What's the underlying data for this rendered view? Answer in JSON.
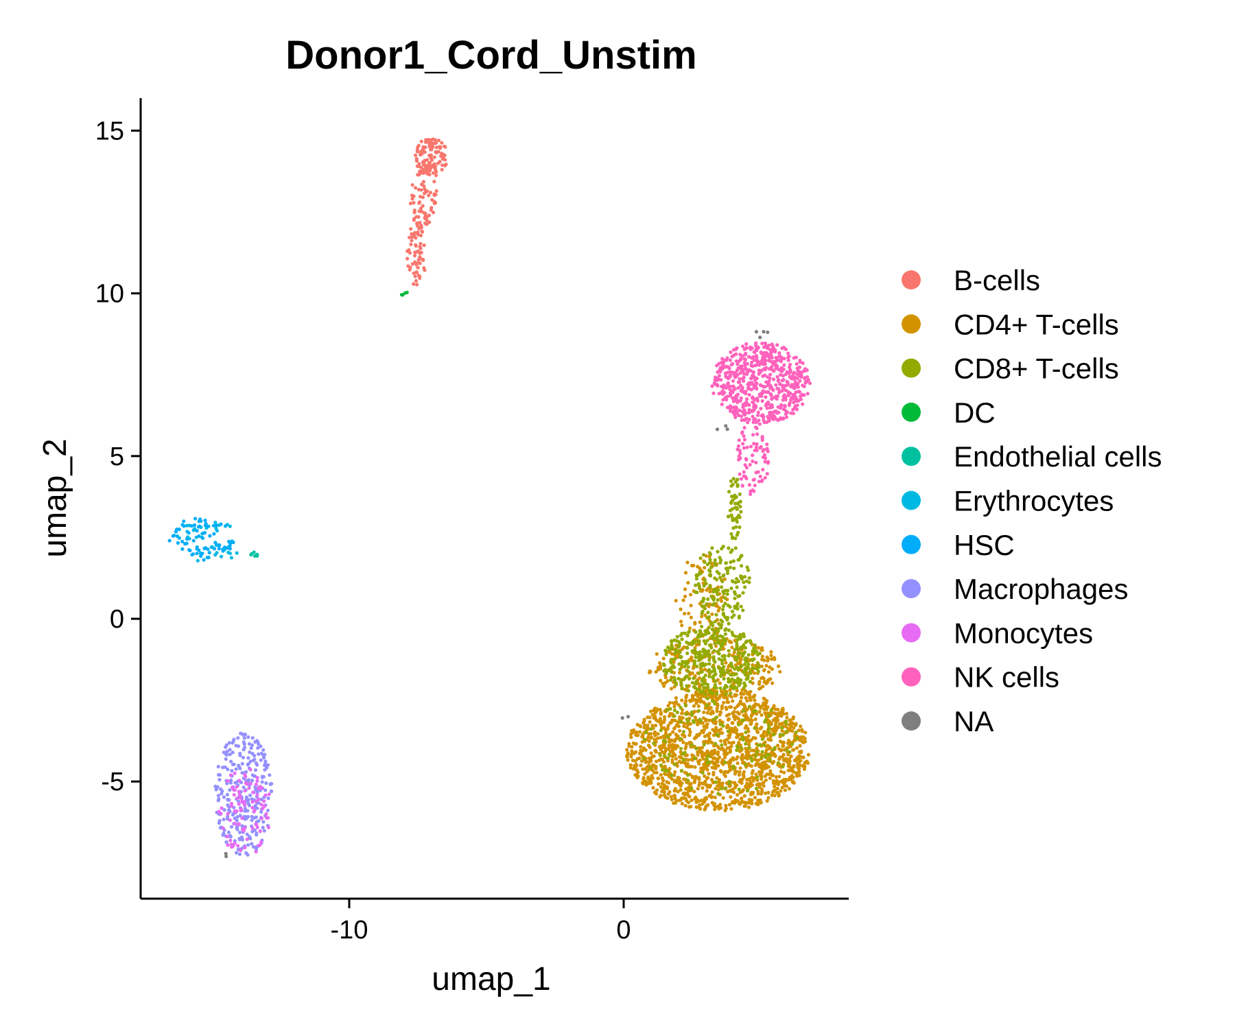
{
  "chart_data": {
    "type": "scatter",
    "title": "Donor1_Cord_Unstim",
    "xlabel": "umap_1",
    "ylabel": "umap_2",
    "xlim": [
      -17.6,
      8.2
    ],
    "ylim": [
      -8.6,
      16.0
    ],
    "xticks": [
      -10,
      0
    ],
    "yticks": [
      -5,
      0,
      5,
      10,
      15
    ],
    "grid": false,
    "legend_position": "right",
    "series": [
      {
        "name": "B-cells",
        "color": "#F8766D",
        "clusters": [
          {
            "n": 110,
            "x": [
              -7.6,
              -6.4
            ],
            "y": [
              13.6,
              14.8
            ]
          },
          {
            "n": 70,
            "x": [
              -7.8,
              -6.8
            ],
            "y": [
              12.0,
              13.8
            ]
          },
          {
            "n": 60,
            "x": [
              -7.9,
              -7.2
            ],
            "y": [
              10.2,
              12.2
            ]
          }
        ]
      },
      {
        "name": "CD4+ T-cells",
        "color": "#D39200",
        "clusters": [
          {
            "n": 1500,
            "x": [
              0.1,
              6.8
            ],
            "y": [
              -5.9,
              -2.2
            ]
          },
          {
            "n": 260,
            "x": [
              0.9,
              5.8
            ],
            "y": [
              -2.4,
              -0.6
            ]
          },
          {
            "n": 90,
            "x": [
              1.9,
              3.8
            ],
            "y": [
              -0.8,
              2.0
            ]
          }
        ]
      },
      {
        "name": "CD8+ T-cells",
        "color": "#93AA00",
        "clusters": [
          {
            "n": 380,
            "x": [
              1.4,
              5.0
            ],
            "y": [
              -2.4,
              -0.2
            ]
          },
          {
            "n": 160,
            "x": [
              2.6,
              4.6
            ],
            "y": [
              -0.3,
              2.4
            ]
          },
          {
            "n": 50,
            "x": [
              3.8,
              4.3
            ],
            "y": [
              2.4,
              4.4
            ]
          },
          {
            "n": 140,
            "x": [
              0.6,
              6.4
            ],
            "y": [
              -5.4,
              -2.4
            ]
          }
        ]
      },
      {
        "name": "DC",
        "color": "#00BA38",
        "clusters": [
          {
            "n": 4,
            "x": [
              -8.1,
              -7.8
            ],
            "y": [
              9.9,
              10.1
            ]
          }
        ]
      },
      {
        "name": "Endothelial cells",
        "color": "#00C19F",
        "clusters": [
          {
            "n": 6,
            "x": [
              -13.6,
              -13.3
            ],
            "y": [
              1.9,
              2.1
            ]
          }
        ]
      },
      {
        "name": "Erythrocytes",
        "color": "#00B9E3",
        "clusters": [
          {
            "n": 40,
            "x": [
              -16.5,
              -13.8
            ],
            "y": [
              1.7,
              3.0
            ]
          }
        ]
      },
      {
        "name": "HSC",
        "color": "#00ADFA",
        "clusters": [
          {
            "n": 70,
            "x": [
              -16.6,
              -14.2
            ],
            "y": [
              1.8,
              3.1
            ]
          }
        ]
      },
      {
        "name": "Macrophages",
        "color": "#9590FF",
        "clusters": [
          {
            "n": 280,
            "x": [
              -14.9,
              -12.8
            ],
            "y": [
              -7.3,
              -3.5
            ]
          }
        ]
      },
      {
        "name": "Monocytes",
        "color": "#E76BF3",
        "clusters": [
          {
            "n": 90,
            "x": [
              -14.8,
              -12.8
            ],
            "y": [
              -7.4,
              -4.6
            ]
          }
        ]
      },
      {
        "name": "NK cells",
        "color": "#FF62BC",
        "clusters": [
          {
            "n": 620,
            "x": [
              3.2,
              6.8
            ],
            "y": [
              6.0,
              8.5
            ]
          },
          {
            "n": 80,
            "x": [
              4.1,
              5.3
            ],
            "y": [
              3.8,
              6.1
            ]
          }
        ]
      },
      {
        "name": "NA",
        "color": "#7F7F7F",
        "clusters": [
          {
            "n": 4,
            "x": [
              4.6,
              5.3
            ],
            "y": [
              8.6,
              8.9
            ]
          },
          {
            "n": 3,
            "x": [
              3.4,
              3.9
            ],
            "y": [
              5.5,
              6.0
            ]
          },
          {
            "n": 2,
            "x": [
              -0.1,
              0.2
            ],
            "y": [
              -3.1,
              -2.9
            ]
          },
          {
            "n": 2,
            "x": [
              -14.6,
              -14.2
            ],
            "y": [
              -7.4,
              -7.2
            ]
          }
        ]
      }
    ]
  }
}
